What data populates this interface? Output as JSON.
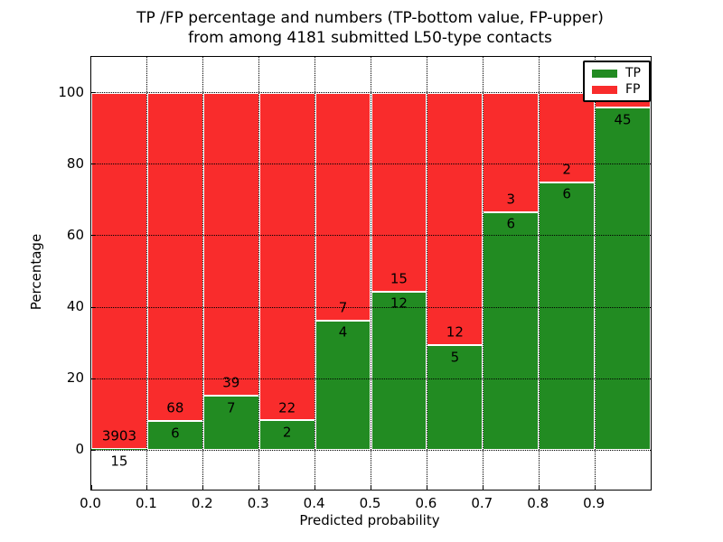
{
  "chart_data": {
    "type": "bar",
    "stacked": true,
    "normalized_to_percent": true,
    "title_line1": "TP /FP percentage and numbers (TP-bottom value, FP-upper)",
    "title_line2": "from among 4181 submitted L50-type contacts",
    "title": "TP /FP percentage and numbers (TP-bottom value, FP-upper) from among 4181 submitted L50-type contacts",
    "xlabel": "Predicted probability",
    "ylabel": "Percentage",
    "xlim": [
      0.0,
      1.0
    ],
    "ylim": [
      -11,
      110
    ],
    "grid": {
      "style": "dotted",
      "color": "#000000"
    },
    "colors": {
      "tp": "#228b22",
      "fp": "#f92c2c"
    },
    "total_contacts": 4181,
    "legend": {
      "position": "upper-right",
      "entries": [
        {
          "label": "TP",
          "color": "#228b22"
        },
        {
          "label": "FP",
          "color": "#f92c2c"
        }
      ]
    },
    "xticks": [
      {
        "value": 0.0,
        "label": "0.0"
      },
      {
        "value": 0.1,
        "label": "0.1"
      },
      {
        "value": 0.2,
        "label": "0.2"
      },
      {
        "value": 0.3,
        "label": "0.3"
      },
      {
        "value": 0.4,
        "label": "0.4"
      },
      {
        "value": 0.5,
        "label": "0.5"
      },
      {
        "value": 0.6,
        "label": "0.6"
      },
      {
        "value": 0.7,
        "label": "0.7"
      },
      {
        "value": 0.8,
        "label": "0.8"
      },
      {
        "value": 0.9,
        "label": "0.9"
      }
    ],
    "yticks": [
      {
        "value": 0,
        "label": "0"
      },
      {
        "value": 20,
        "label": "20"
      },
      {
        "value": 40,
        "label": "40"
      },
      {
        "value": 60,
        "label": "60"
      },
      {
        "value": 80,
        "label": "80"
      },
      {
        "value": 100,
        "label": "100"
      }
    ],
    "bars": [
      {
        "x_start": 0.0,
        "x_end": 0.1,
        "tp_count": 15,
        "fp_count": 3903,
        "tp_pct": 0.38,
        "tp_label": "15",
        "fp_label": "3903"
      },
      {
        "x_start": 0.1,
        "x_end": 0.2,
        "tp_count": 6,
        "fp_count": 68,
        "tp_pct": 8.11,
        "tp_label": "6",
        "fp_label": "68"
      },
      {
        "x_start": 0.2,
        "x_end": 0.3,
        "tp_count": 7,
        "fp_count": 39,
        "tp_pct": 15.22,
        "tp_label": "7",
        "fp_label": "39"
      },
      {
        "x_start": 0.3,
        "x_end": 0.4,
        "tp_count": 2,
        "fp_count": 22,
        "tp_pct": 8.33,
        "tp_label": "2",
        "fp_label": "22"
      },
      {
        "x_start": 0.4,
        "x_end": 0.5,
        "tp_count": 4,
        "fp_count": 7,
        "tp_pct": 36.36,
        "tp_label": "4",
        "fp_label": "7"
      },
      {
        "x_start": 0.5,
        "x_end": 0.6,
        "tp_count": 12,
        "fp_count": 15,
        "tp_pct": 44.44,
        "tp_label": "12",
        "fp_label": "15"
      },
      {
        "x_start": 0.6,
        "x_end": 0.7,
        "tp_count": 5,
        "fp_count": 12,
        "tp_pct": 29.41,
        "tp_label": "5",
        "fp_label": "12"
      },
      {
        "x_start": 0.7,
        "x_end": 0.8,
        "tp_count": 6,
        "fp_count": 3,
        "tp_pct": 66.67,
        "tp_label": "6",
        "fp_label": "3"
      },
      {
        "x_start": 0.8,
        "x_end": 0.9,
        "tp_count": 6,
        "fp_count": 2,
        "tp_pct": 75.0,
        "tp_label": "6",
        "fp_label": "2"
      },
      {
        "x_start": 0.9,
        "x_end": 1.0,
        "tp_count": 45,
        "fp_count": 2,
        "tp_pct": 95.74,
        "tp_label": "45",
        "fp_label": ""
      }
    ]
  }
}
